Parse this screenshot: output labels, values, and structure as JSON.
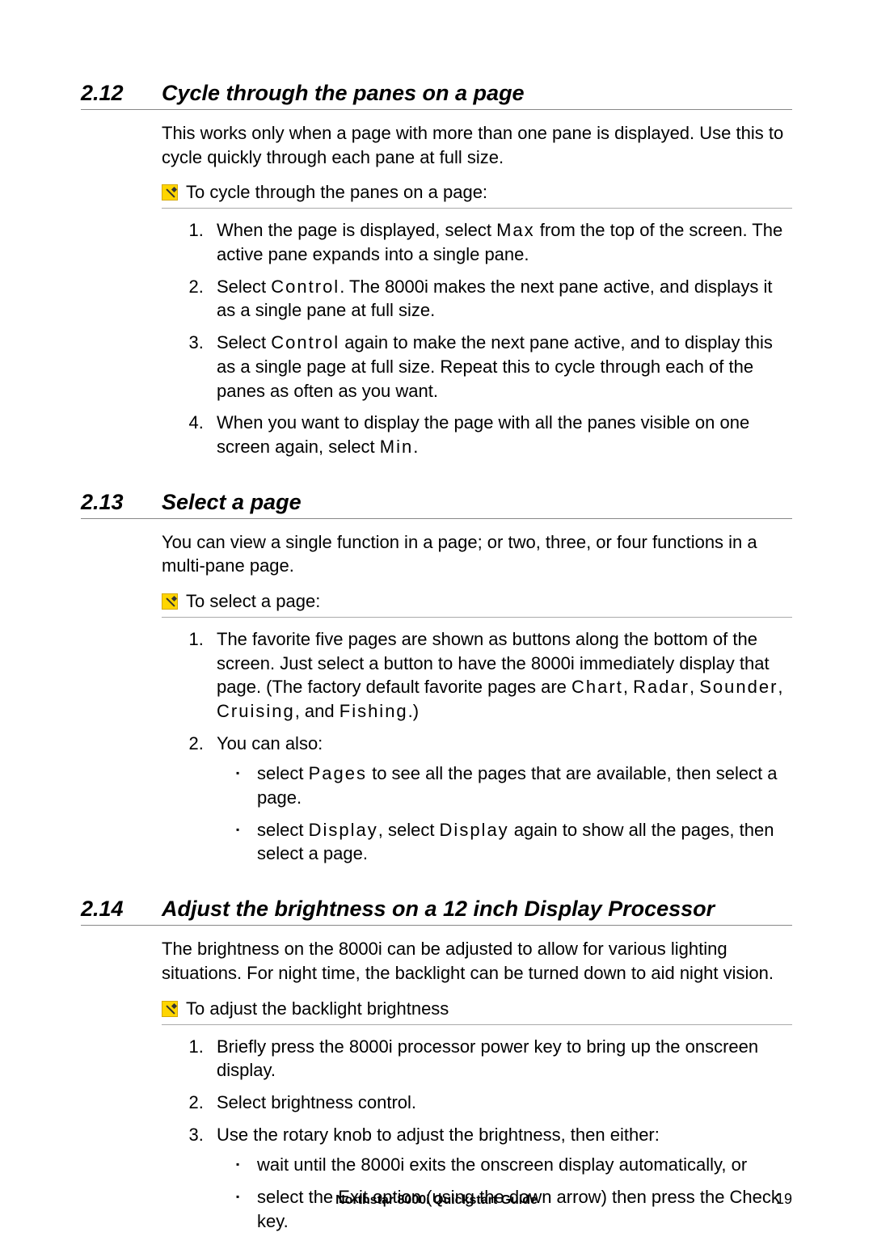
{
  "sections": [
    {
      "num": "2.12",
      "title": "Cycle through the panes on a page",
      "intro": "This works only when a page with more than one pane is displayed. Use this to cycle quickly through each pane at full size.",
      "task": "To cycle through the panes on a page:",
      "steps_html": [
        "When the page is displayed, select <span class='kw'>Max</span> from the top of the screen. The active pane expands into a single pane.",
        "Select <span class='kw'>Control</span>. The 8000i makes the next pane active, and displays it as a single pane at full size.",
        "Select <span class='kw'>Control</span> again to make the next pane active, and to display this as a single page at full size. Repeat this to cycle through each of the panes as often as you want.",
        "When you want to display the page with all the panes visible on one screen again, select <span class='kw'>Min</span>."
      ]
    },
    {
      "num": "2.13",
      "title": "Select a page",
      "intro": "You can view a single function in a page; or two, three, or four functions in a multi-pane page.",
      "task": "To select a page:",
      "steps_html": [
        "The favorite five pages are shown as buttons along the bottom of the screen. Just select a button to have the 8000i immediately display that page. (The factory default favorite pages are <span class='kw'>Chart</span>, <span class='kw'>Radar</span>, <span class='kw'>Sounder</span>, <span class='kw'>Cruising</span>, and <span class='kw'>Fishing</span>.)",
        "You can also:<ul class='sub-steps'><li>select <span class='kw'>Pages</span> to see all the pages that are available, then select a page.</li><li>select <span class='kw'>Display</span>, select <span class='kw'>Display</span> again to show all the pages, then select a page.</li></ul>"
      ]
    },
    {
      "num": "2.14",
      "title": "Adjust the brightness on a 12 inch Display Processor",
      "intro": "The brightness on the 8000i can be adjusted to allow for various lighting situations. For night time, the backlight can be turned down to aid night vision.",
      "task": "To adjust the backlight brightness",
      "steps_html": [
        "Briefly press the 8000i processor power key to bring up the onscreen display.",
        "Select brightness control.",
        "Use the rotary knob to adjust the brightness, then either:<ul class='sub-steps'><li>wait until the 8000i exits the onscreen display automatically, or</li><li>select the Exit option (using the down arrow) then press the Check key.</li></ul>"
      ]
    }
  ],
  "footer": "Northstar 8000i Quickstart Guide",
  "page": "19"
}
